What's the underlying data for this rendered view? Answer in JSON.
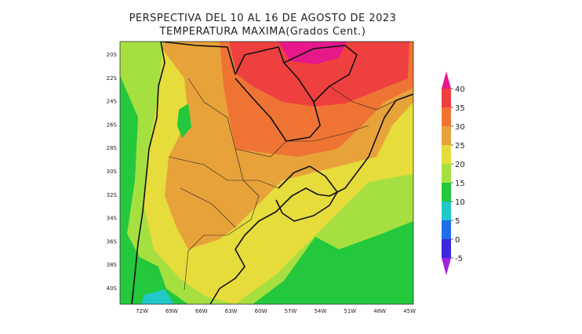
{
  "title": "PERSPECTIVA DEL 10 AL 16 DE AGOSTO DE 2023",
  "subtitle": "TEMPERATURA MAXIMA(Grados Cent.)",
  "latitude_labels": [
    "20S",
    "22S",
    "24S",
    "26S",
    "28S",
    "30S",
    "32S",
    "34S",
    "36S",
    "38S",
    "40S"
  ],
  "longitude_labels": [
    "72W",
    "69W",
    "66W",
    "63W",
    "60W",
    "57W",
    "54W",
    "51W",
    "48W",
    "45W"
  ],
  "colorbar": {
    "ticks": [
      40,
      35,
      30,
      25,
      20,
      15,
      10,
      5,
      0,
      -5
    ],
    "colors": [
      "#e6188a",
      "#ef4040",
      "#ef7434",
      "#e8a23a",
      "#e6dc3c",
      "#a6e040",
      "#24c83c",
      "#20c8c8",
      "#1e6ee6",
      "#3c28dc",
      "#a020e0"
    ]
  }
}
